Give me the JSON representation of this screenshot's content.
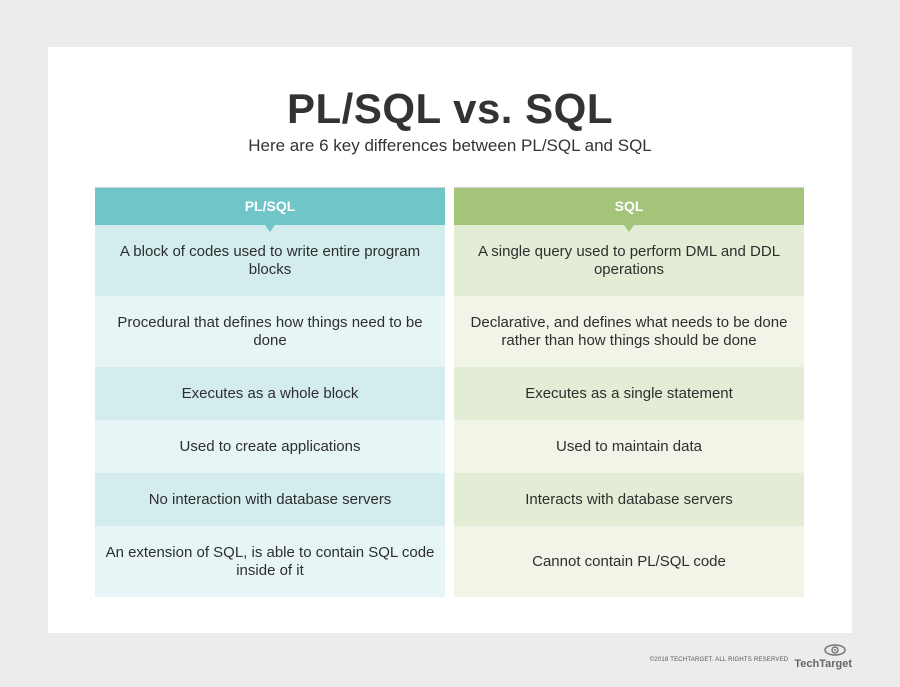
{
  "header": {
    "title": "PL/SQL vs. SQL",
    "subtitle": "Here are 6 key differences between PL/SQL and SQL"
  },
  "table": {
    "left_header": "PL/SQL",
    "right_header": "SQL",
    "rows": [
      {
        "left": "A block of codes used to write entire program blocks",
        "right": "A single query used to perform DML and DDL operations"
      },
      {
        "left": "Procedural that defines how things need to be done",
        "right": "Declarative, and defines what needs to be done rather than how things should be done"
      },
      {
        "left": "Executes as a whole block",
        "right": "Executes as a single statement"
      },
      {
        "left": "Used to create applications",
        "right": "Used to maintain data"
      },
      {
        "left": "No interaction with database servers",
        "right": "Interacts with database servers"
      },
      {
        "left": "An extension of SQL, is able to contain SQL code inside of it",
        "right": "Cannot contain PL/SQL code"
      }
    ]
  },
  "footer": {
    "copyright": "©2018 TECHTARGET. ALL RIGHTS RESERVED",
    "brand": "TechTarget",
    "brand_icon": "eye-logo-icon"
  },
  "colors": {
    "plsql_header": "#6fc5c7",
    "sql_header": "#a3c479"
  }
}
